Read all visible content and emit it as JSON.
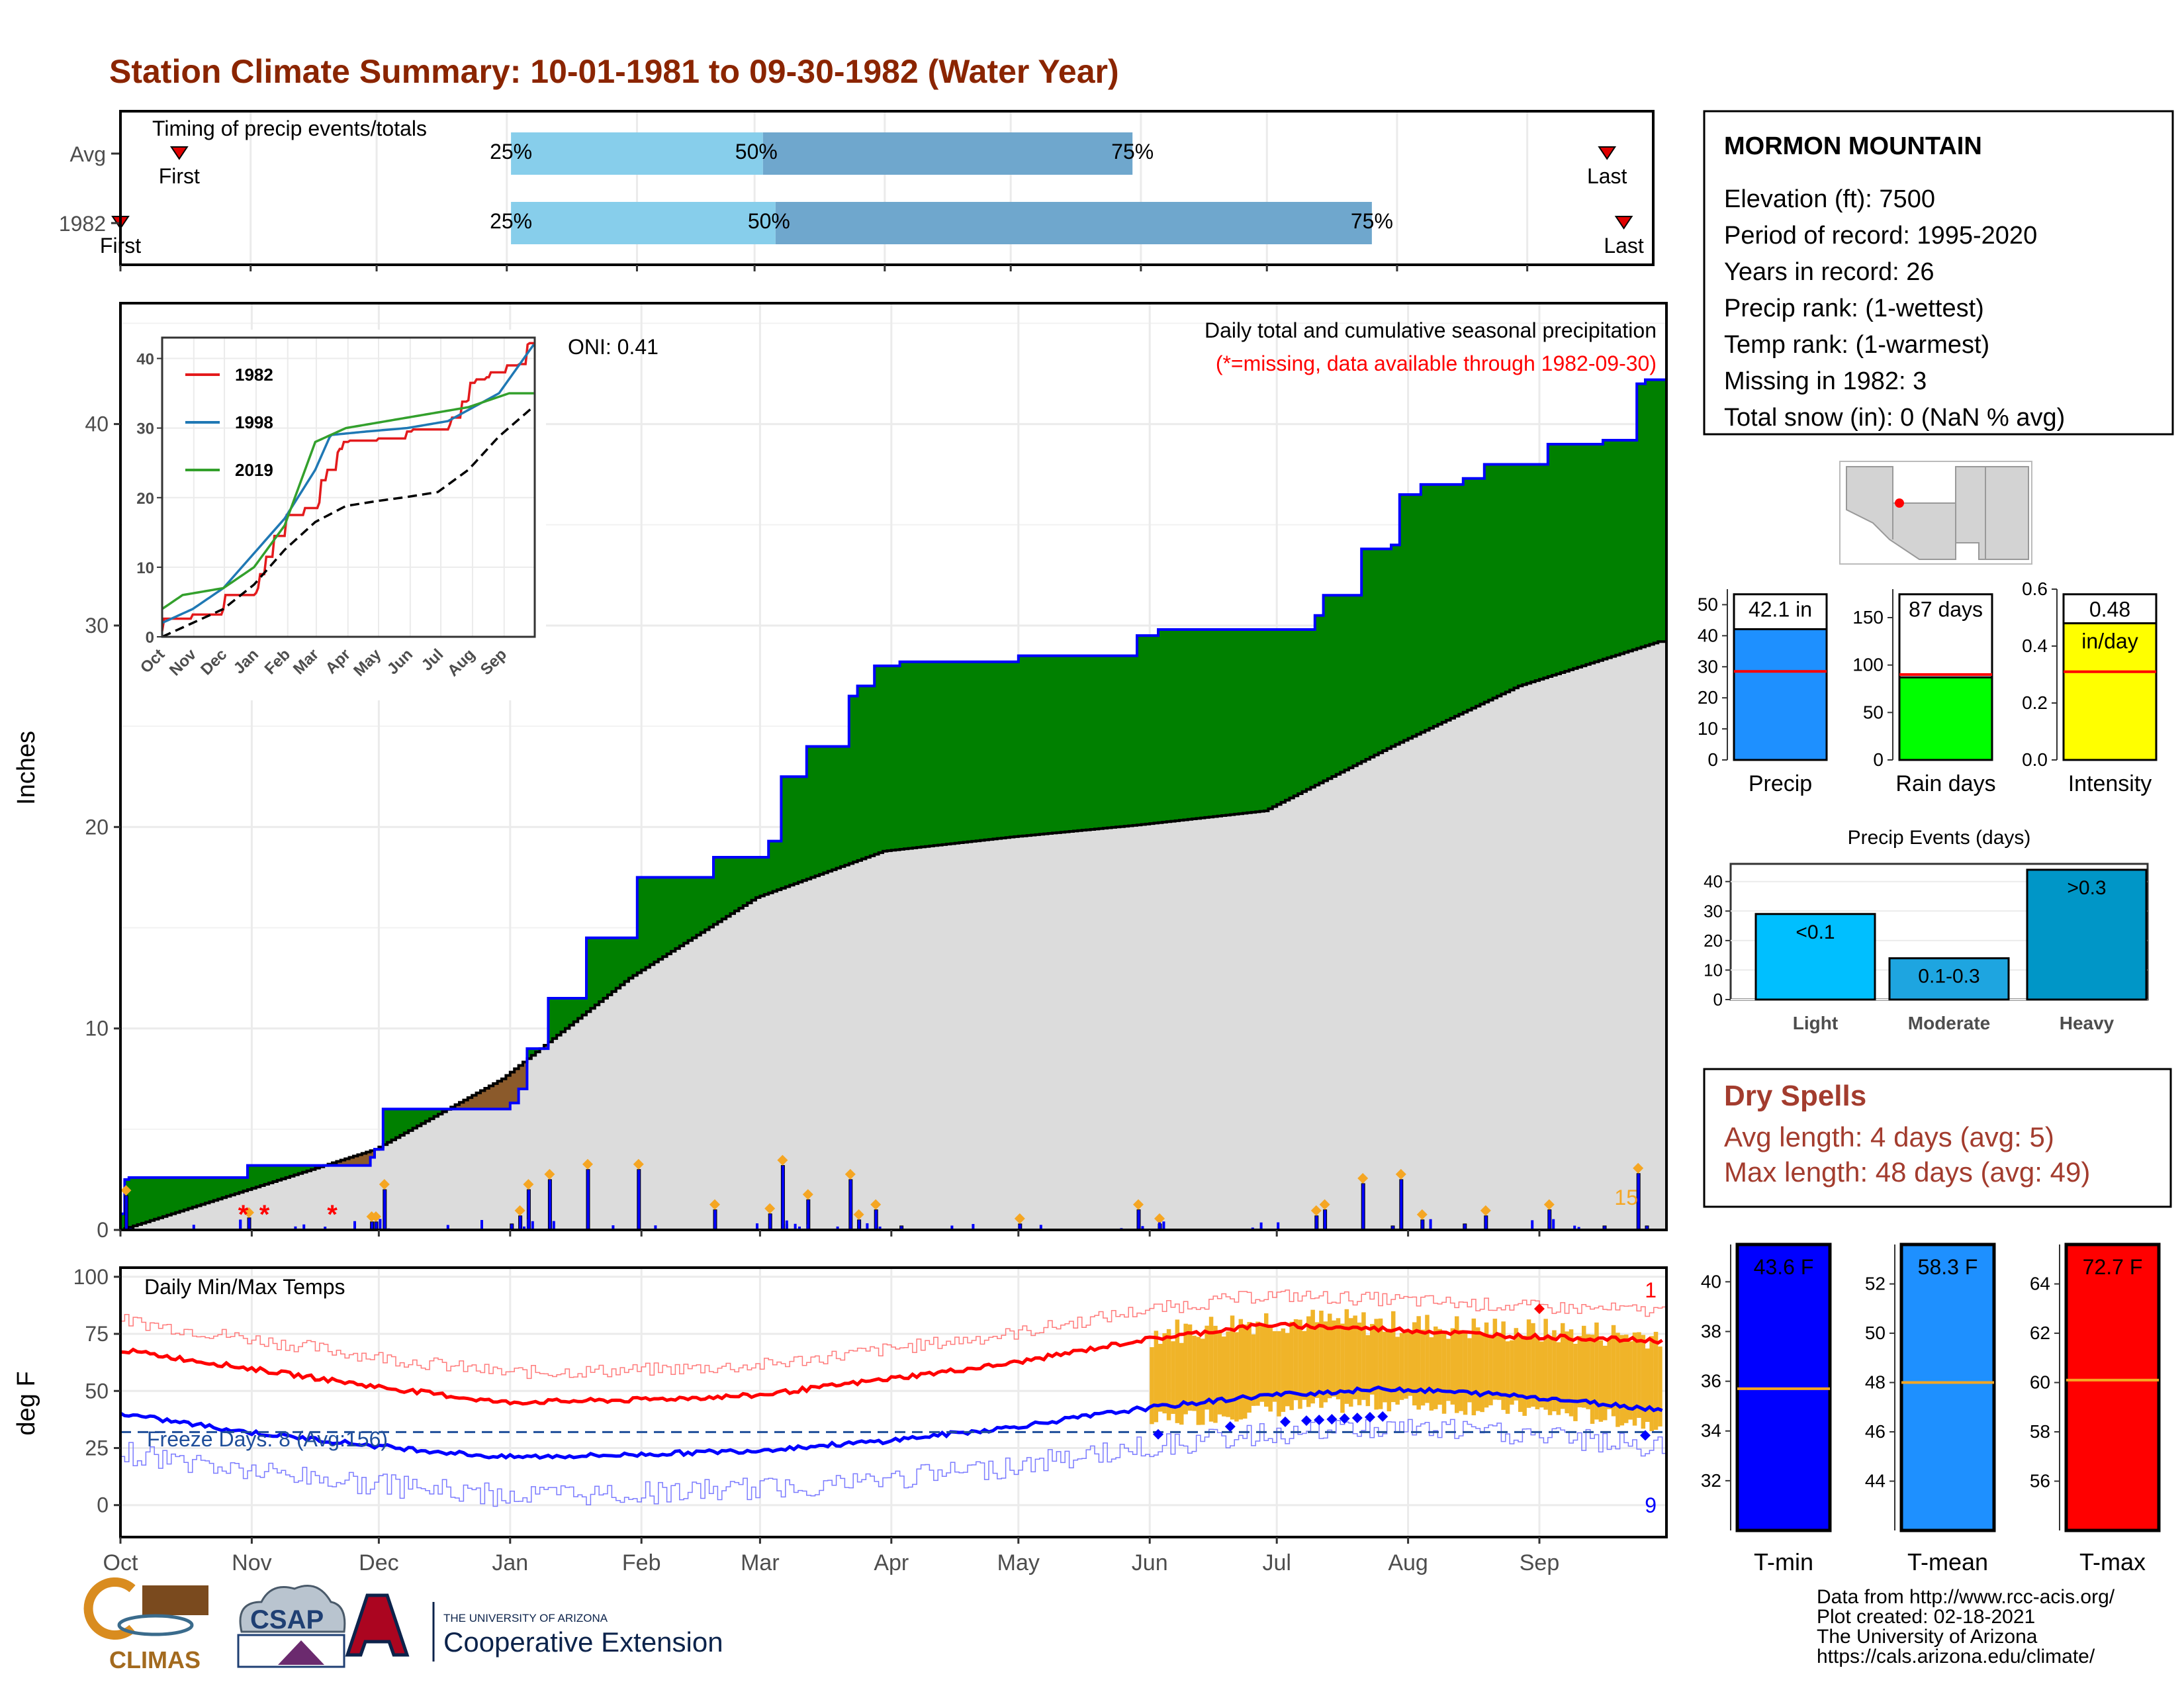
{
  "title": "Station Climate Summary: 10-01-1981 to 09-30-1982 (Water Year)",
  "colors": {
    "title": "#8b2500",
    "brand_red": "#a33c2e",
    "precip_green": "#008000",
    "cumulative_gray": "#dcdcdc",
    "blue": "#0000ff",
    "light_blue": "#87ceeb",
    "mid_blue": "#6fa7cd",
    "tmax_red": "#ff0000",
    "orange": "#f5a623"
  },
  "timing": {
    "title": "Timing of precip events/totals",
    "rows": [
      {
        "label": "Avg",
        "first": "First",
        "last": "Last",
        "p25": "25%",
        "p50": "50%",
        "p75": "75%",
        "first_day": 14,
        "p25_day": 93,
        "p50_day": 153,
        "p75_day": 241,
        "last_day": 354
      },
      {
        "label": "1982",
        "first": "First",
        "last": "Last",
        "p25": "25%",
        "p50": "50%",
        "p75": "75%",
        "first_day": 0,
        "p25_day": 93,
        "p50_day": 156,
        "p75_day": 298,
        "last_day": 358
      }
    ]
  },
  "precip_panel": {
    "ylabel": "Inches",
    "oni": "ONI: 0.41",
    "subtitle": "Daily total and cumulative seasonal precipitation",
    "missing_note": "(*=missing, data available through 1982-09-30)",
    "count_label": "15",
    "months": [
      "Oct",
      "Nov",
      "Dec",
      "Jan",
      "Feb",
      "Mar",
      "Apr",
      "May",
      "Jun",
      "Jul",
      "Aug",
      "Sep"
    ],
    "yticks": [
      "0",
      "10",
      "20",
      "30",
      "40"
    ],
    "ylim": [
      0,
      46
    ]
  },
  "inset": {
    "months": [
      "Oct",
      "Nov",
      "Dec",
      "Jan",
      "Feb",
      "Mar",
      "Apr",
      "May",
      "Jun",
      "Jul",
      "Aug",
      "Sep"
    ],
    "yticks": [
      "0",
      "10",
      "20",
      "30",
      "40"
    ],
    "legend": [
      {
        "name": "1982",
        "color": "#e31a1c"
      },
      {
        "name": "1998",
        "color": "#1f78b4"
      },
      {
        "name": "2019",
        "color": "#33a02c"
      }
    ]
  },
  "temp_panel": {
    "ylabel": "deg F",
    "title": "Daily Min/Max Temps",
    "freeze": "Freeze Days: 8 (Avg:156)",
    "record_high_count": "1",
    "record_low_count": "9",
    "yticks": [
      "0",
      "25",
      "50",
      "75",
      "100"
    ],
    "months": [
      "Oct",
      "Nov",
      "Dec",
      "Jan",
      "Feb",
      "Mar",
      "Apr",
      "May",
      "Jun",
      "Jul",
      "Aug",
      "Sep"
    ]
  },
  "station": {
    "name": "MORMON MOUNTAIN",
    "lines": [
      "Elevation (ft): 7500",
      "Period of record: 1995-2020",
      "Years in record: 26",
      "Precip rank:  (1-wettest)",
      "Temp rank:  (1-warmest)",
      "Missing in 1982: 3",
      "Total snow (in): 0 (NaN % avg)"
    ]
  },
  "summary_bars": [
    {
      "label": "Precip",
      "value_text": "42.1 in",
      "value": 42.1,
      "avg": 28.5,
      "ymax": 55,
      "ticks": [
        "0",
        "10",
        "20",
        "30",
        "40",
        "50"
      ],
      "tick_values": [
        0,
        10,
        20,
        30,
        40,
        50
      ],
      "color": "#1e90ff"
    },
    {
      "label": "Rain days",
      "value_text": "87 days",
      "value": 87,
      "avg": 90,
      "ymax": 180,
      "ticks": [
        "0",
        "50",
        "100",
        "150"
      ],
      "tick_values": [
        0,
        50,
        100,
        150
      ],
      "color": "#00ff00"
    },
    {
      "label": "Intensity",
      "value_text": "0.48",
      "unit": "in/day",
      "value": 0.48,
      "avg": 0.31,
      "ymax": 0.6,
      "ticks": [
        "0.0",
        "0.2",
        "0.4",
        "0.6"
      ],
      "tick_values": [
        0,
        0.2,
        0.4,
        0.6
      ],
      "color": "#ffff00"
    }
  ],
  "events": {
    "title": "Precip Events (days)",
    "ticks": [
      "0",
      "10",
      "20",
      "30",
      "40"
    ],
    "bars": [
      {
        "category": "Light",
        "label": "<0.1",
        "value": 29,
        "color": "#00bfff"
      },
      {
        "category": "Moderate",
        "label": "0.1-0.3",
        "value": 14,
        "color": "#1ea5e0"
      },
      {
        "category": "Heavy",
        "label": ">0.3",
        "value": 44,
        "color": "#0096c7"
      }
    ]
  },
  "dry_spells": {
    "title": "Dry Spells",
    "avg": "Avg length: 4 days (avg: 5)",
    "max": "Max length: 48 days (avg: 49)"
  },
  "temp_bars": [
    {
      "label": "T-min",
      "value_text": "43.6 F",
      "value": 43.6,
      "avg": 35.7,
      "ymin": 30,
      "ymax": 41.5,
      "ticks": [
        "32",
        "34",
        "36",
        "38",
        "40"
      ],
      "tick_values": [
        32,
        34,
        36,
        38,
        40
      ],
      "color": "#0000ff"
    },
    {
      "label": "T-mean",
      "value_text": "58.3 F",
      "value": 58.3,
      "avg": 48.0,
      "ymin": 42,
      "ymax": 53.6,
      "ticks": [
        "44",
        "46",
        "48",
        "50",
        "52"
      ],
      "tick_values": [
        44,
        46,
        48,
        50,
        52
      ],
      "color": "#1e90ff"
    },
    {
      "label": "T-max",
      "value_text": "72.7 F",
      "value": 72.7,
      "avg": 60.1,
      "ymin": 54,
      "ymax": 65.6,
      "ticks": [
        "56",
        "58",
        "60",
        "62",
        "64"
      ],
      "tick_values": [
        56,
        58,
        60,
        62,
        64
      ],
      "color": "#ff0000"
    }
  ],
  "footer": {
    "lines": [
      "Data from http://www.rcc-acis.org/",
      "Plot created: 02-18-2021",
      "The University of Arizona",
      "https://cals.arizona.edu/climate/"
    ],
    "climas": "CLIMAS",
    "csap": "CSAP",
    "ua_small": "THE UNIVERSITY OF ARIZONA",
    "ua_big": "Cooperative Extension"
  },
  "chart_data": [
    {
      "type": "area",
      "title": "Daily total and cumulative seasonal precipitation",
      "ylabel": "Inches",
      "ylim": [
        0,
        46
      ],
      "series": [
        {
          "name": "1982",
          "x": [
            0,
            1,
            2,
            30,
            59,
            60,
            62,
            92,
            94,
            96,
            101,
            110,
            122,
            140,
            153,
            156,
            162,
            172,
            174,
            178,
            182,
            184,
            198,
            212,
            240,
            245,
            247,
            277,
            282,
            284,
            293,
            300,
            302,
            307,
            317,
            322,
            337,
            350,
            358,
            360,
            363
          ],
          "values": [
            0.8,
            2.5,
            2.6,
            3.2,
            3.6,
            4.0,
            6.0,
            6.3,
            7.0,
            9.0,
            11.5,
            14.5,
            17.5,
            18.5,
            19.3,
            22.5,
            24.0,
            26.5,
            27.0,
            28.0,
            28.0,
            28.2,
            28.2,
            28.5,
            29.5,
            29.8,
            29.8,
            29.8,
            30.5,
            31.5,
            33.8,
            34.0,
            36.5,
            37.0,
            37.3,
            38.0,
            39.0,
            39.2,
            42.0,
            42.2,
            42.2
          ]
        },
        {
          "name": "Avg",
          "x": [
            0,
            30,
            60,
            90,
            120,
            150,
            180,
            210,
            240,
            270,
            300,
            330,
            363
          ],
          "values": [
            0,
            2.0,
            4.0,
            7.5,
            12.5,
            16.5,
            18.8,
            19.5,
            20.1,
            20.8,
            24.0,
            27.0,
            29.2
          ]
        }
      ]
    },
    {
      "type": "line",
      "title": "Daily Min/Max Temps",
      "ylabel": "deg F",
      "x": [
        0,
        30,
        60,
        90,
        120,
        150,
        180,
        210,
        240,
        270,
        300,
        330,
        363
      ],
      "series": [
        {
          "name": "Max avg",
          "values": [
            68,
            60,
            52,
            45,
            46,
            48,
            55,
            62,
            72,
            79,
            77,
            74,
            72
          ]
        },
        {
          "name": "Min avg",
          "values": [
            40,
            32,
            26,
            21,
            22,
            24,
            28,
            34,
            42,
            48,
            51,
            48,
            42
          ]
        }
      ]
    }
  ]
}
